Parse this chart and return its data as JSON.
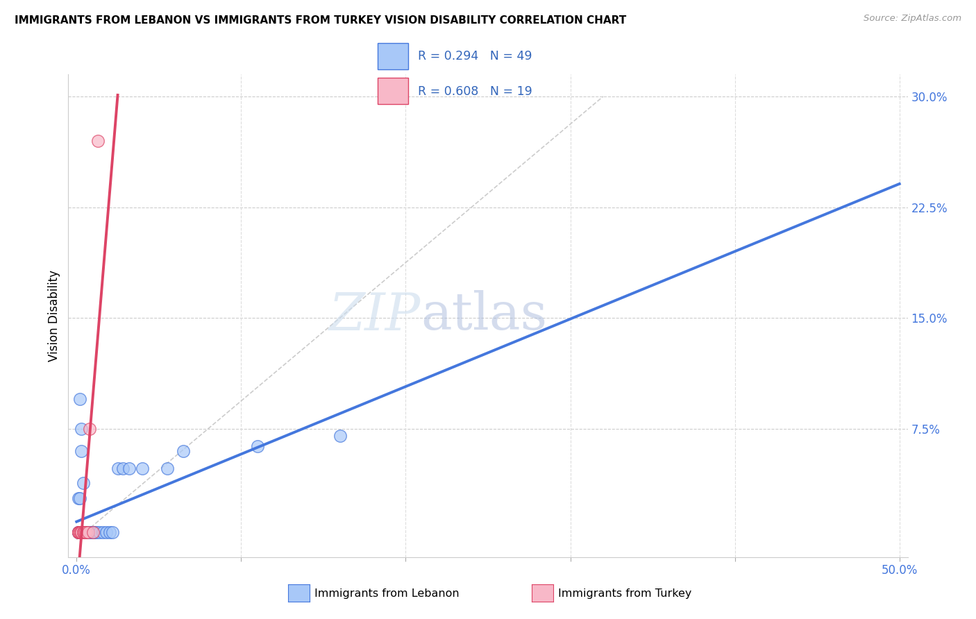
{
  "title": "IMMIGRANTS FROM LEBANON VS IMMIGRANTS FROM TURKEY VISION DISABILITY CORRELATION CHART",
  "source": "Source: ZipAtlas.com",
  "ylabel": "Vision Disability",
  "xlim": [
    -0.005,
    0.505
  ],
  "ylim": [
    -0.012,
    0.315
  ],
  "watermark_zip": "ZIP",
  "watermark_atlas": "atlas",
  "color_lebanon": "#A8C8F8",
  "color_turkey": "#F8B8C8",
  "color_lebanon_line": "#4477DD",
  "color_turkey_line": "#DD4466",
  "color_dashed_line": "#CCCCCC",
  "lebanon_x": [
    0.001,
    0.001,
    0.001,
    0.002,
    0.002,
    0.002,
    0.002,
    0.002,
    0.003,
    0.003,
    0.003,
    0.003,
    0.004,
    0.004,
    0.004,
    0.004,
    0.005,
    0.005,
    0.005,
    0.006,
    0.006,
    0.007,
    0.008,
    0.009,
    0.01,
    0.011,
    0.012,
    0.014,
    0.016,
    0.018,
    0.02,
    0.022,
    0.025,
    0.028,
    0.032,
    0.04,
    0.055,
    0.065,
    0.11,
    0.16,
    0.002,
    0.003,
    0.001,
    0.002,
    0.004,
    0.003,
    0.005,
    0.002,
    0.001
  ],
  "lebanon_y": [
    0.005,
    0.005,
    0.005,
    0.005,
    0.005,
    0.005,
    0.005,
    0.005,
    0.005,
    0.005,
    0.005,
    0.005,
    0.005,
    0.005,
    0.005,
    0.005,
    0.005,
    0.005,
    0.005,
    0.005,
    0.005,
    0.005,
    0.005,
    0.005,
    0.005,
    0.005,
    0.005,
    0.005,
    0.005,
    0.005,
    0.005,
    0.005,
    0.048,
    0.048,
    0.048,
    0.048,
    0.048,
    0.06,
    0.063,
    0.07,
    0.095,
    0.075,
    0.028,
    0.028,
    0.038,
    0.06,
    0.005,
    0.005,
    0.005
  ],
  "turkey_x": [
    0.001,
    0.001,
    0.001,
    0.002,
    0.002,
    0.002,
    0.003,
    0.003,
    0.003,
    0.004,
    0.004,
    0.004,
    0.005,
    0.005,
    0.006,
    0.007,
    0.008,
    0.01,
    0.013
  ],
  "turkey_y": [
    0.005,
    0.005,
    0.005,
    0.005,
    0.005,
    0.005,
    0.005,
    0.005,
    0.005,
    0.005,
    0.005,
    0.005,
    0.005,
    0.005,
    0.005,
    0.005,
    0.075,
    0.005,
    0.27
  ]
}
